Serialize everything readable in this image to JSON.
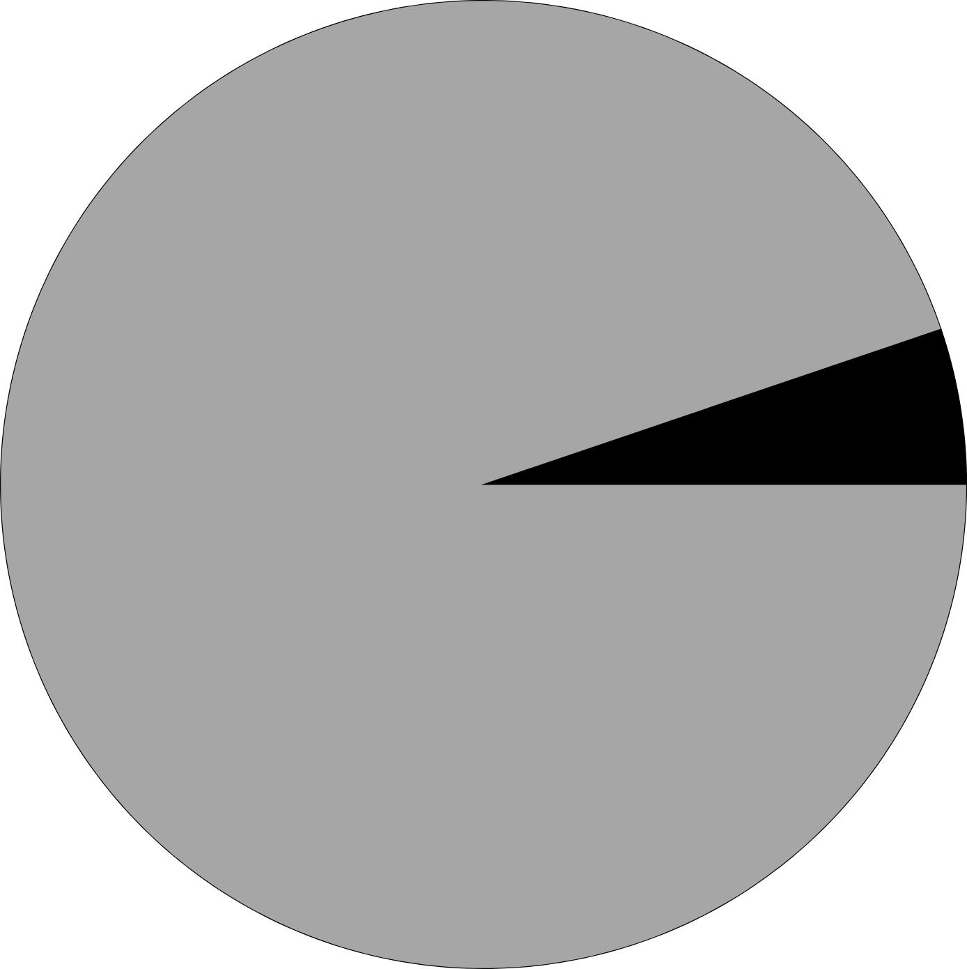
{
  "chart_data": {
    "type": "pie",
    "categories": [
      null,
      null
    ],
    "values": [
      5.2,
      94.8
    ],
    "colors": [
      "#000000",
      "#a6a6a6"
    ]
  }
}
